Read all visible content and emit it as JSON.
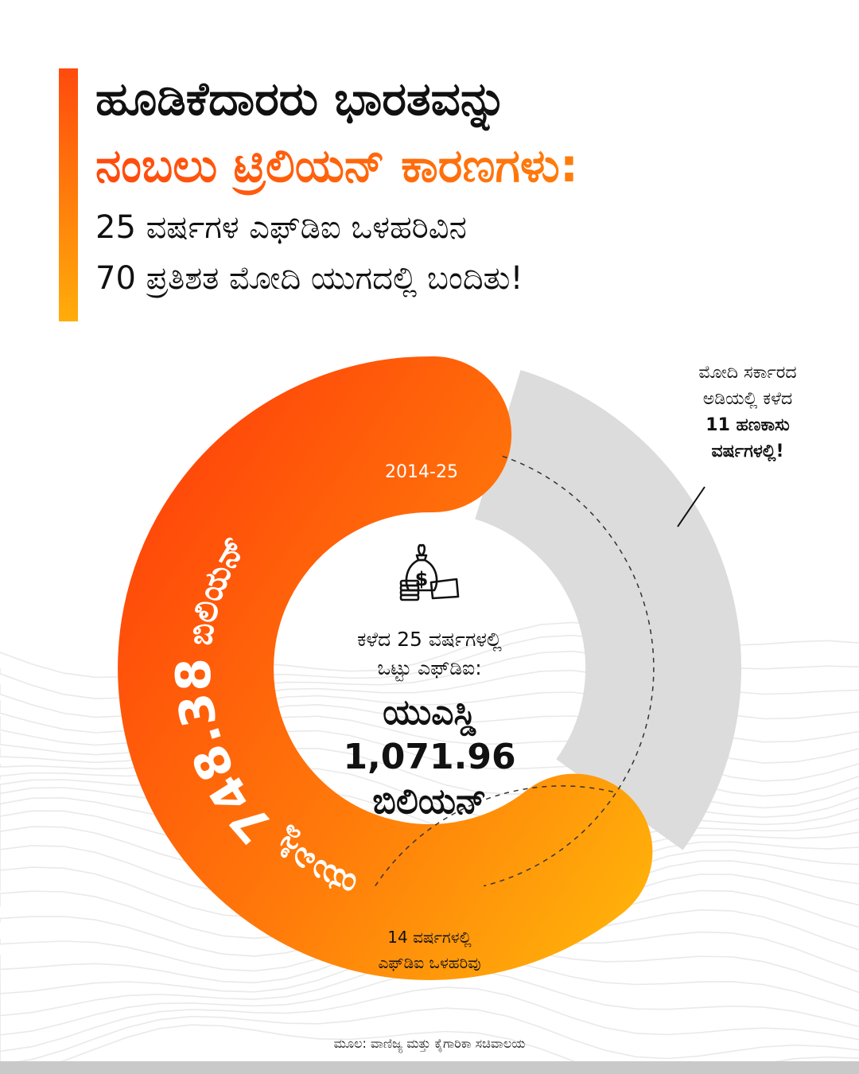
{
  "title": {
    "line1": "ಹೂಡಿಕೆದಾರರು ಭಾರತವನ್ನು",
    "line2": "ನಂಬಲು ಟ್ರಿಲಿಯನ್ ಕಾರಣಗಳು:",
    "subtitle_line1": "25 ವರ್ಷಗಳ ಎಫ್‌ಡಿಐ ಒಳಹರಿವಿನ",
    "subtitle_line2": "70 ಪ್ರತಿಶತ ಮೋದಿ ಯುಗದಲ್ಲಿ ಬಂದಿತು!"
  },
  "colors": {
    "orange_start": "#ff3d0a",
    "orange_end": "#ffb30a",
    "gray_segment": "#dcdcdc"
  },
  "chart_data": {
    "type": "pie",
    "title": "",
    "total": {
      "label_line1": "ಕಳೆದ 25 ವರ್ಷಗಳಲ್ಲಿ",
      "label_line2": "ಒಟ್ಟು ಎಫ್‌ಡಿಐ:",
      "value_line1": "ಯುಎಸ್ಡಿ",
      "value_line2": "1,071.96",
      "value_line3": "ಬಿಲಿಯನ್",
      "value": 1071.96
    },
    "segments": [
      {
        "name_prefix": "ಯುಎಸ್ಡಿ",
        "value_text": "748.38",
        "name_suffix": "ಬಿಲಿಯನ್",
        "period": "2014-25",
        "value": 748.38,
        "color": "#ff6a0a"
      },
      {
        "value": 323.58,
        "color": "#dcdcdc"
      }
    ],
    "annotations": {
      "modi_note_line1": "ಮೋದಿ ಸರ್ಕಾರದ",
      "modi_note_line2": "ಅಡಿಯಲ್ಲಿ ಕಳೆದ",
      "modi_note_line3": "11 ಹಣಕಾಸು",
      "modi_note_line4": "ವರ್ಷಗಳಲ್ಲಿ!",
      "gap_note_line1": "14 ವರ್ಷಗಳಲ್ಲಿ",
      "gap_note_line2": "ಎಫ್‌ಡಿಐ ಒಳಹರಿವು"
    },
    "icon": "money-bag-icon"
  },
  "source": "ಮೂಲ: ವಾಣಿಜ್ಯ ಮತ್ತು ಕೈಗಾರಿಕಾ ಸಚಿವಾಲಯ"
}
